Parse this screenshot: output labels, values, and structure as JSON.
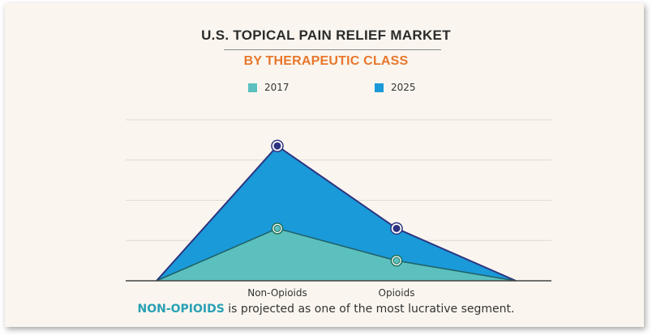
{
  "chart_data": {
    "type": "area",
    "title": "U.S. TOPICAL PAIN RELIEF MARKET",
    "subtitle": "BY THERAPEUTIC CLASS",
    "categories": [
      "",
      "Non-Opioids",
      "Opioids",
      ""
    ],
    "series": [
      {
        "name": "2017",
        "values": [
          0,
          1.3,
          0.5,
          0
        ],
        "color": "#5bc0be"
      },
      {
        "name": "2025",
        "values": [
          0,
          3.35,
          1.3,
          0
        ],
        "color": "#1a9ad8"
      }
    ],
    "ylim": [
      0,
      4
    ],
    "grid": true,
    "legend_position": "top",
    "xlabel": "",
    "ylabel": ""
  },
  "legend": {
    "items": [
      "2017",
      "2025"
    ]
  },
  "caption": {
    "highlight": "NON-OPIOIDS",
    "rest": " is projected as one of the most lucrative segment."
  },
  "colors": {
    "subtitle": "#e8762b",
    "caption_highlight": "#2aa0b5",
    "outline": "#2e3480",
    "marker_2017_outline": "#1f6f56",
    "grid": "#dedad4"
  }
}
